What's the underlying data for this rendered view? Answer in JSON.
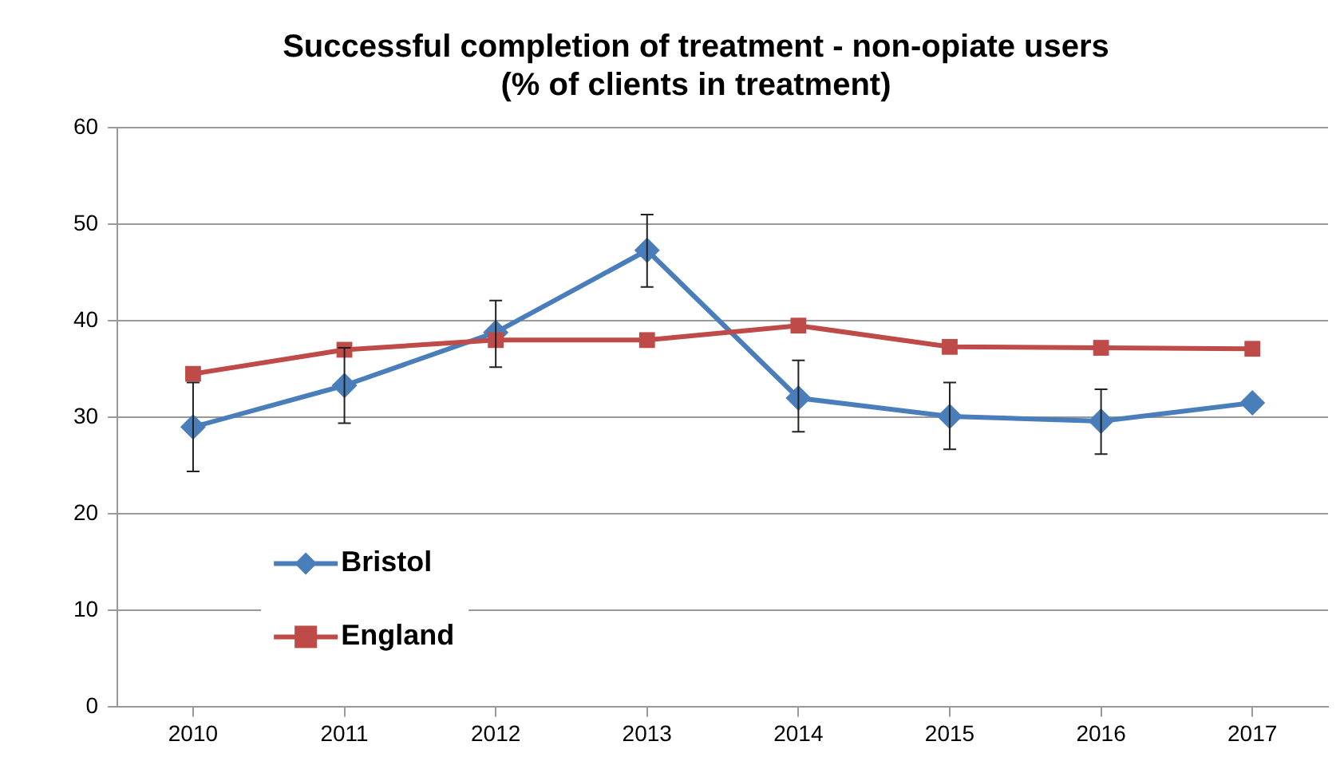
{
  "chart_data": {
    "type": "line",
    "title": "Successful completion of treatment - non-opiate users\n(% of clients in treatment)",
    "categories": [
      "2010",
      "2011",
      "2012",
      "2013",
      "2014",
      "2015",
      "2016",
      "2017"
    ],
    "series": [
      {
        "name": "Bristol",
        "color": "#4a7ebb",
        "marker": "diamond",
        "values": [
          29.0,
          33.3,
          38.8,
          47.3,
          32.0,
          30.1,
          29.6,
          31.5
        ],
        "errors": [
          [
            24.4,
            33.6
          ],
          [
            29.4,
            37.2
          ],
          [
            35.2,
            42.1
          ],
          [
            43.5,
            51.0
          ],
          [
            28.5,
            35.9
          ],
          [
            26.7,
            33.6
          ],
          [
            26.2,
            32.9
          ],
          null
        ]
      },
      {
        "name": "England",
        "color": "#be4b48",
        "marker": "square",
        "values": [
          34.5,
          37.0,
          38.0,
          38.0,
          39.5,
          37.3,
          37.2,
          37.1
        ]
      }
    ],
    "ylim": [
      0,
      60
    ],
    "yticks": [
      0,
      10,
      20,
      30,
      40,
      50,
      60
    ],
    "grid": "y",
    "legend": "bottom left"
  }
}
